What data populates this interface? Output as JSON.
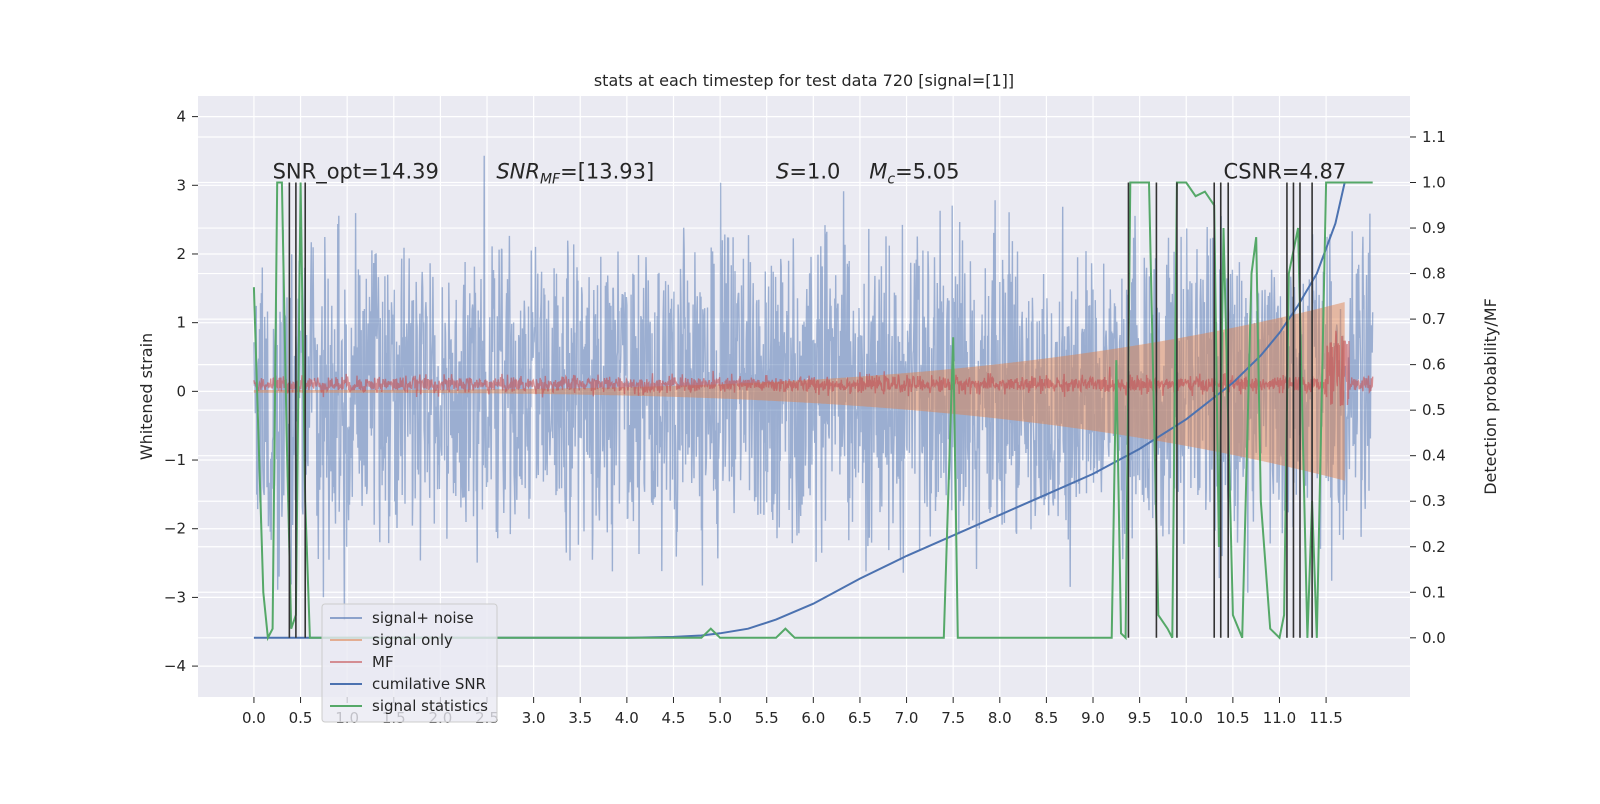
{
  "chart_data": {
    "type": "line",
    "title": "stats at each timestep for test data 720 [signal=[1]]",
    "xlabel": "",
    "ylabel_left": "Whitened strain",
    "ylabel_right": "Detection probability/MF",
    "xlim": [
      -0.6,
      12.4
    ],
    "ylim_left": [
      -4.45,
      4.3
    ],
    "ylim_right": [
      -0.13,
      1.19
    ],
    "x_ticks": [
      0.0,
      0.5,
      1.0,
      1.5,
      2.0,
      2.5,
      3.0,
      3.5,
      4.0,
      4.5,
      5.0,
      5.5,
      6.0,
      6.5,
      7.0,
      7.5,
      8.0,
      8.5,
      9.0,
      9.5,
      10.0,
      10.5,
      11.0,
      11.5
    ],
    "x_tick_labels": [
      "0.0",
      "0.5",
      "1.0",
      "1.5",
      "2.0",
      "2.5",
      "3.0",
      "3.5",
      "4.0",
      "4.5",
      "5.0",
      "5.5",
      "6.0",
      "6.5",
      "7.0",
      "7.5",
      "8.0",
      "8.5",
      "9.0",
      "9.5",
      "10.0",
      "10.5",
      "11.0",
      "11.5"
    ],
    "y_left_ticks": [
      -4,
      -3,
      -2,
      -1,
      0,
      1,
      2,
      3,
      4
    ],
    "y_left_tick_labels": [
      "−4",
      "−3",
      "−2",
      "−1",
      "0",
      "1",
      "2",
      "3",
      "4"
    ],
    "y_right_ticks": [
      0.0,
      0.1,
      0.2,
      0.3,
      0.4,
      0.5,
      0.6,
      0.7,
      0.8,
      0.9,
      1.0,
      1.1
    ],
    "y_right_tick_labels": [
      "0.0",
      "0.1",
      "0.2",
      "0.3",
      "0.4",
      "0.5",
      "0.6",
      "0.7",
      "0.8",
      "0.9",
      "1.0",
      "1.1"
    ],
    "grid": true,
    "legend_position": "lower-left",
    "annotations": [
      {
        "label": "SNR_opt=14.39",
        "x": 0.2,
        "y": 3.1
      },
      {
        "label": "SNR",
        "sub": "MF",
        "rest": "=[13.93]",
        "x": 2.6,
        "y": 3.1
      },
      {
        "label": "S",
        "sub": "",
        "rest": "=1.0",
        "x": 5.6,
        "y": 3.1
      },
      {
        "label": "M",
        "sub": "c",
        "rest": "=5.05",
        "x": 6.6,
        "y": 3.1
      },
      {
        "label": "CSNR=4.87",
        "x": 10.4,
        "y": 3.1
      }
    ],
    "series": [
      {
        "name": "signal+ noise",
        "color": "#4c72b0",
        "opacity": 0.5,
        "axis": "left",
        "style": "noise",
        "amplitude": 1.2,
        "x_range": [
          0.0,
          12.0
        ]
      },
      {
        "name": "signal only",
        "color": "#dd8452",
        "opacity": 0.5,
        "axis": "left",
        "style": "chirp",
        "envelope_start": 0.02,
        "envelope_end": 1.3,
        "x_range": [
          0.0,
          11.7
        ]
      },
      {
        "name": "MF",
        "color": "#c44e52",
        "opacity": 0.6,
        "axis": "left",
        "style": "mf",
        "center": 0.1,
        "x_range": [
          0.0,
          12.0
        ]
      },
      {
        "name": "cumilative SNR",
        "color": "#4c72b0",
        "opacity": 1.0,
        "axis": "right",
        "x": [
          0.0,
          4.0,
          4.5,
          4.8,
          5.0,
          5.3,
          5.6,
          6.0,
          6.5,
          7.0,
          7.5,
          8.0,
          8.5,
          9.0,
          9.5,
          10.0,
          10.5,
          10.8,
          11.0,
          11.2,
          11.4,
          11.6,
          11.7
        ],
        "y": [
          0.0,
          0.0,
          0.002,
          0.005,
          0.01,
          0.02,
          0.04,
          0.075,
          0.13,
          0.18,
          0.225,
          0.27,
          0.315,
          0.36,
          0.415,
          0.48,
          0.56,
          0.62,
          0.67,
          0.73,
          0.8,
          0.91,
          1.0
        ]
      },
      {
        "name": "signal statistics",
        "color": "#55a868",
        "opacity": 1.0,
        "axis": "right",
        "x": [
          0.0,
          0.1,
          0.15,
          0.2,
          0.25,
          0.3,
          0.35,
          0.4,
          0.45,
          0.5,
          0.55,
          0.6,
          0.65,
          0.7,
          4.8,
          4.9,
          5.0,
          5.6,
          5.7,
          5.8,
          7.4,
          7.5,
          7.55,
          9.1,
          9.2,
          9.25,
          9.3,
          9.35,
          9.4,
          9.6,
          9.7,
          9.8,
          9.85,
          9.9,
          10.0,
          10.1,
          10.2,
          10.3,
          10.35,
          10.4,
          10.5,
          10.6,
          10.7,
          10.75,
          10.8,
          10.9,
          11.0,
          11.05,
          11.1,
          11.2,
          11.3,
          11.35,
          11.4,
          11.5,
          11.6,
          12.0
        ],
        "y": [
          0.77,
          0.1,
          0.0,
          0.02,
          1.0,
          1.0,
          0.45,
          0.02,
          0.05,
          1.0,
          0.3,
          0.0,
          0.0,
          0.0,
          0.0,
          0.02,
          0.0,
          0.0,
          0.02,
          0.0,
          0.0,
          0.66,
          0.0,
          0.0,
          0.0,
          0.61,
          0.01,
          0.0,
          1.0,
          1.0,
          0.05,
          0.02,
          0.0,
          1.0,
          1.0,
          0.97,
          0.98,
          0.95,
          0.2,
          0.9,
          0.05,
          0.0,
          0.8,
          0.88,
          0.3,
          0.02,
          0.0,
          0.05,
          0.8,
          0.9,
          0.0,
          0.3,
          0.0,
          1.0,
          1.0,
          1.0
        ]
      }
    ],
    "vertical_lines": {
      "color": "#333333",
      "x": [
        0.38,
        0.45,
        0.55,
        9.38,
        9.68,
        9.9,
        10.3,
        10.37,
        10.45,
        11.08,
        11.15,
        11.22,
        11.35
      ],
      "ymin_right": 0.0,
      "ymax_right": 1.0
    }
  }
}
